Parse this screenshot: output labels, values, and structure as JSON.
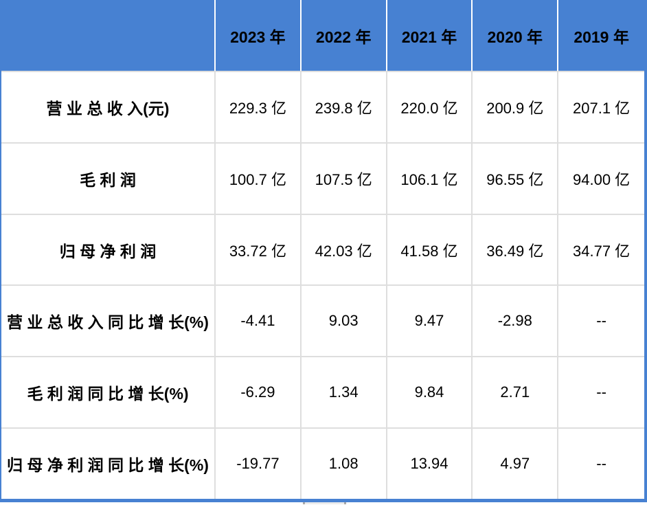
{
  "colors": {
    "header_bg": "#4781d2",
    "header_text": "#000000",
    "body_text": "#000000",
    "grid_line": "#dedede",
    "header_separator": "#ffffff",
    "outer_border": "#4781d2"
  },
  "chart_data": {
    "type": "table",
    "title": "",
    "columns": [
      "",
      "2023 年",
      "2022 年",
      "2021 年",
      "2020 年",
      "2019 年"
    ],
    "rows": [
      [
        "营 业 总 收 入(元)",
        "229.3 亿",
        "239.8 亿",
        "220.0 亿",
        "200.9 亿",
        "207.1 亿"
      ],
      [
        "毛 利 润",
        "100.7 亿",
        "107.5 亿",
        "106.1 亿",
        "96.55 亿",
        "94.00 亿"
      ],
      [
        "归 母 净 利 润",
        "33.72 亿",
        "42.03 亿",
        "41.58 亿",
        "36.49 亿",
        "34.77 亿"
      ],
      [
        "营 业 总 收 入 同 比 增 长(%)",
        "-4.41",
        "9.03",
        "9.47",
        "-2.98",
        "--"
      ],
      [
        "毛 利 润 同 比 增 长(%)",
        "-6.29",
        "1.34",
        "9.84",
        "2.71",
        "--"
      ],
      [
        "归 母 净 利 润 同 比 增 长(%)",
        "-19.77",
        "1.08",
        "13.94",
        "4.97",
        "--"
      ]
    ]
  }
}
